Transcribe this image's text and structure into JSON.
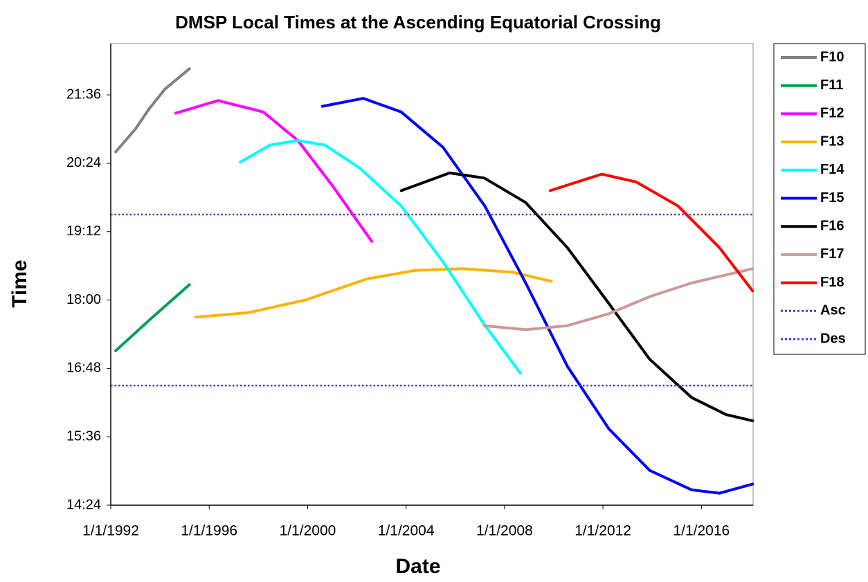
{
  "chart_data": {
    "type": "line",
    "title": "DMSP Local Times at the Ascending Equatorial Crossing",
    "xlabel": "Date",
    "ylabel": "Time",
    "xlim": [
      1992,
      2018.1
    ],
    "xticks": [
      {
        "value": 1992,
        "label": "1/1/1992"
      },
      {
        "value": 1996,
        "label": "1/1/1996"
      },
      {
        "value": 2000,
        "label": "1/1/2000"
      },
      {
        "value": 2004,
        "label": "1/1/2004"
      },
      {
        "value": 2008,
        "label": "1/1/2008"
      },
      {
        "value": 2012,
        "label": "1/1/2012"
      },
      {
        "value": 2016,
        "label": "1/1/2016"
      }
    ],
    "ylim": [
      14.4,
      22.5
    ],
    "yticks": [
      {
        "value": 14.4,
        "label": "14:24"
      },
      {
        "value": 15.6,
        "label": "15:36"
      },
      {
        "value": 16.8,
        "label": "16:48"
      },
      {
        "value": 18,
        "label": "18:00"
      },
      {
        "value": 19.2,
        "label": "19:12"
      },
      {
        "value": 20.4,
        "label": "20:24"
      },
      {
        "value": 21.6,
        "label": "21:36"
      }
    ],
    "legend": "right",
    "series": [
      {
        "name": "F10",
        "color": "#808080",
        "x": [
          1992.2,
          1993.0,
          1993.55,
          1994.2,
          1995.2
        ],
        "values": [
          20.6,
          21.0,
          21.35,
          21.7,
          22.06
        ]
      },
      {
        "name": "F11",
        "color": "#00a050",
        "x": [
          1992.2,
          1993.7,
          1995.2
        ],
        "values": [
          17.11,
          17.7,
          18.27
        ]
      },
      {
        "name": "F12",
        "color": "#ff00ff",
        "x": [
          1994.64,
          1996.36,
          1998.2,
          1999.6,
          2001.0,
          2002.6
        ],
        "values": [
          21.28,
          21.5,
          21.3,
          20.8,
          20.01,
          19.03
        ]
      },
      {
        "name": "F13",
        "color": "#ffb300",
        "x": [
          1995.46,
          1997.6,
          1999.9,
          2002.4,
          2004.37,
          2006.3,
          2008.3,
          2009.9
        ],
        "values": [
          17.7,
          17.78,
          18.0,
          18.37,
          18.52,
          18.55,
          18.49,
          18.33
        ]
      },
      {
        "name": "F14",
        "color": "#00ffff",
        "x": [
          1997.26,
          1998.47,
          1999.6,
          2000.7,
          2002.1,
          2003.8,
          2005.5,
          2007.18,
          2008.64
        ],
        "values": [
          20.42,
          20.72,
          20.8,
          20.72,
          20.32,
          19.65,
          18.67,
          17.57,
          16.72
        ]
      },
      {
        "name": "F15",
        "color": "#0000ff",
        "x": [
          2000.6,
          2002.26,
          2003.8,
          2005.5,
          2007.2,
          2008.86,
          2010.55,
          2012.24,
          2013.9,
          2015.6,
          2016.73,
          2018.08
        ],
        "values": [
          21.4,
          21.54,
          21.3,
          20.68,
          19.65,
          18.3,
          16.84,
          15.74,
          15.01,
          14.67,
          14.61,
          14.77
        ]
      },
      {
        "name": "F16",
        "color": "#000000",
        "x": [
          2003.8,
          2005.77,
          2007.18,
          2008.86,
          2010.55,
          2012.24,
          2013.9,
          2015.6,
          2017.0,
          2018.08
        ],
        "values": [
          19.92,
          20.23,
          20.14,
          19.71,
          18.92,
          17.94,
          16.96,
          16.29,
          15.99,
          15.88
        ]
      },
      {
        "name": "F17",
        "color": "#cc9999",
        "x": [
          2007.18,
          2008.86,
          2010.55,
          2012.24,
          2013.9,
          2015.6,
          2018.08
        ],
        "values": [
          17.55,
          17.48,
          17.55,
          17.76,
          18.06,
          18.3,
          18.55
        ]
      },
      {
        "name": "F18",
        "color": "#ff0000",
        "x": [
          2009.85,
          2011.95,
          2013.36,
          2015.05,
          2016.73,
          2018.08
        ],
        "values": [
          19.92,
          20.21,
          20.07,
          19.65,
          18.92,
          18.16
        ]
      },
      {
        "name": "Asc",
        "color": "#7030a0",
        "dash": "dotted",
        "x": [
          1992,
          2018.1
        ],
        "values": [
          19.5,
          19.5
        ]
      },
      {
        "name": "Des",
        "color": "#3333ff",
        "dash": "dotted",
        "x": [
          1992,
          2018.1
        ],
        "values": [
          16.5,
          16.5
        ]
      }
    ]
  }
}
